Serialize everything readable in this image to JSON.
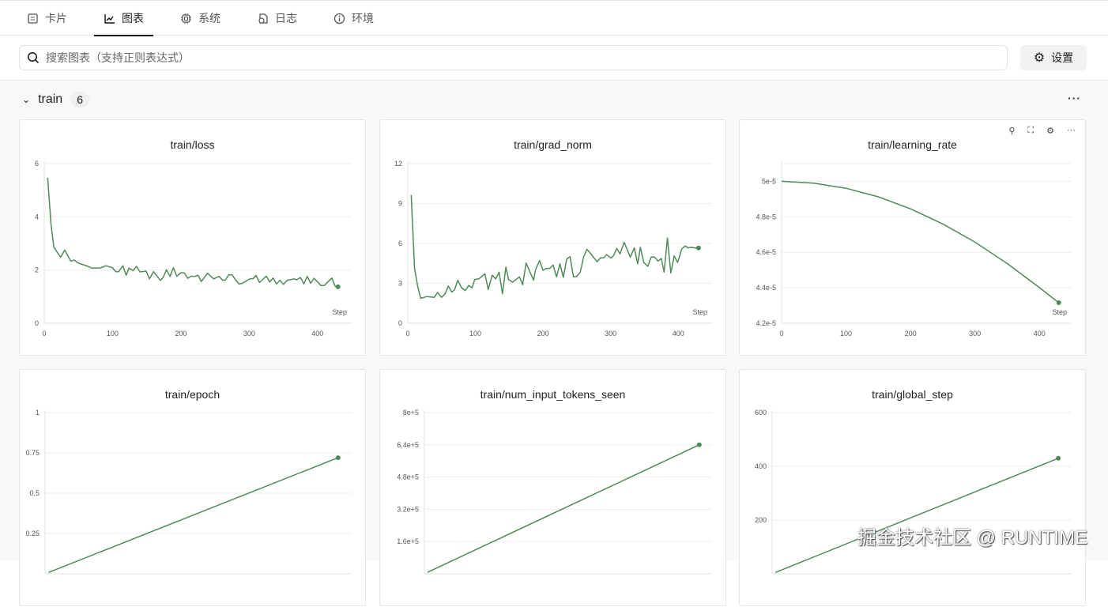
{
  "tabs": [
    {
      "label": "卡片",
      "icon": "card-icon"
    },
    {
      "label": "图表",
      "icon": "chart-icon",
      "active": true
    },
    {
      "label": "系统",
      "icon": "chip-icon"
    },
    {
      "label": "日志",
      "icon": "log-icon"
    },
    {
      "label": "环境",
      "icon": "info-icon"
    }
  ],
  "search": {
    "placeholder": "搜索图表（支持正则表达式）"
  },
  "settings_label": "设置",
  "section": {
    "name": "train",
    "count": "6"
  },
  "card_tools": [
    "pin-icon",
    "fullscreen-icon",
    "gear-icon",
    "more-icon"
  ],
  "colors": {
    "line": "#4f8a57",
    "accent": "#111111"
  },
  "watermark": "掘金技术社区 @ RUNTIME",
  "chart_data": [
    {
      "type": "line",
      "title": "train/loss",
      "xlabel": "Step",
      "xlim": [
        0,
        450
      ],
      "ylim": [
        0,
        6
      ],
      "xticks": [
        "0",
        "100",
        "200",
        "300",
        "400"
      ],
      "yticks": [
        "0",
        "2",
        "4",
        "6"
      ],
      "grid": true,
      "x": [
        5,
        10,
        14,
        24,
        30,
        39,
        44,
        49,
        64,
        70,
        82,
        90,
        99,
        105,
        109,
        115,
        120,
        124,
        130,
        135,
        140,
        149,
        154,
        160,
        170,
        174,
        179,
        184,
        189,
        194,
        200,
        205,
        210,
        215,
        221,
        225,
        230,
        239,
        248,
        256,
        261,
        265,
        270,
        275,
        280,
        285,
        290,
        300,
        306,
        310,
        315,
        325,
        330,
        335,
        340,
        345,
        350,
        356,
        366,
        369,
        375,
        380,
        385,
        390,
        395,
        405,
        410,
        421,
        426,
        430
      ],
      "y": [
        5.47,
        3.71,
        2.86,
        2.48,
        2.75,
        2.33,
        2.38,
        2.27,
        2.14,
        2.07,
        2.08,
        2.16,
        2.1,
        1.94,
        1.94,
        2.16,
        1.81,
        2.07,
        1.98,
        2.14,
        1.93,
        1.96,
        1.67,
        1.94,
        1.61,
        1.72,
        2.01,
        1.76,
        2.09,
        1.77,
        1.9,
        1.89,
        1.69,
        1.77,
        1.76,
        1.81,
        1.57,
        1.88,
        1.67,
        1.76,
        1.62,
        1.62,
        1.82,
        1.82,
        1.63,
        1.48,
        1.5,
        1.66,
        1.68,
        1.8,
        1.53,
        1.77,
        1.55,
        1.7,
        1.48,
        1.62,
        1.46,
        1.62,
        1.67,
        1.63,
        1.72,
        1.48,
        1.76,
        1.5,
        1.69,
        1.42,
        1.42,
        1.7,
        1.38,
        1.37
      ]
    },
    {
      "type": "line",
      "title": "train/grad_norm",
      "xlabel": "Step",
      "xlim": [
        0,
        450
      ],
      "ylim": [
        0,
        12
      ],
      "xticks": [
        "0",
        "100",
        "200",
        "300",
        "400"
      ],
      "yticks": [
        "0",
        "3",
        "6",
        "9",
        "12"
      ],
      "grid": true,
      "x": [
        5,
        10,
        15,
        19,
        28,
        34,
        39,
        44,
        50,
        55,
        60,
        65,
        69,
        74,
        79,
        85,
        90,
        95,
        99,
        105,
        114,
        119,
        125,
        130,
        135,
        140,
        145,
        149,
        155,
        165,
        170,
        175,
        186,
        189,
        195,
        200,
        205,
        210,
        215,
        220,
        225,
        230,
        235,
        240,
        245,
        250,
        255,
        260,
        265,
        270,
        280,
        285,
        290,
        294,
        300,
        304,
        309,
        314,
        320,
        329,
        335,
        340,
        344,
        349,
        355,
        360,
        365,
        370,
        375,
        379,
        384,
        389,
        394,
        399,
        405,
        410,
        415,
        419,
        425,
        430
      ],
      "y": [
        9.64,
        4.08,
        2.7,
        1.87,
        2.01,
        1.97,
        1.95,
        2.31,
        1.95,
        2.21,
        2.8,
        2.34,
        2.5,
        3.23,
        2.7,
        2.46,
        2.84,
        2.66,
        3.29,
        3.33,
        3.72,
        2.54,
        3.62,
        3.33,
        3.84,
        2.21,
        4.22,
        3.29,
        3.09,
        3.49,
        2.9,
        4.53,
        3.23,
        4.04,
        4.71,
        3.98,
        4.12,
        4.12,
        4.37,
        3.49,
        4.47,
        3.45,
        4.83,
        5.0,
        3.49,
        3.53,
        3.84,
        4.97,
        5.56,
        5.26,
        4.63,
        4.91,
        4.93,
        5.16,
        4.91,
        5.06,
        5.62,
        5.22,
        6.09,
        4.97,
        5.66,
        4.47,
        5.71,
        4.57,
        4.28,
        4.97,
        4.97,
        4.67,
        4.87,
        3.84,
        6.4,
        3.78,
        5.06,
        4.57,
        5.56,
        5.81,
        5.66,
        5.71,
        5.66,
        5.66
      ]
    },
    {
      "type": "line",
      "title": "train/learning_rate",
      "xlabel": "Step",
      "xlim": [
        0,
        450
      ],
      "ylim": [
        4.2e-05,
        5.1e-05
      ],
      "xticks": [
        "0",
        "100",
        "200",
        "300",
        "400"
      ],
      "yticks": [
        "4.2e-5",
        "4.4e-5",
        "4.6e-5",
        "4.8e-5",
        "5e-5"
      ],
      "grid": true,
      "x": [
        0,
        50,
        100,
        150,
        200,
        250,
        300,
        350,
        400,
        430
      ],
      "y": [
        5e-05,
        4.99e-05,
        4.961e-05,
        4.913e-05,
        4.845e-05,
        4.76e-05,
        4.657e-05,
        4.537e-05,
        4.401e-05,
        4.316e-05
      ]
    },
    {
      "type": "line",
      "title": "train/epoch",
      "xlim": [
        0,
        450
      ],
      "ylim": [
        0,
        1
      ],
      "yticks": [
        "0.25",
        "0.5",
        "0.75",
        "1"
      ],
      "grid": true,
      "x": [
        5,
        430
      ],
      "y": [
        0.0084,
        0.72
      ]
    },
    {
      "type": "line",
      "title": "train/num_input_tokens_seen",
      "xlim": [
        0,
        450
      ],
      "ylim": [
        0,
        800000.0
      ],
      "yticks": [
        "1.6e+5",
        "3.2e+5",
        "4.8e+5",
        "6.4e+5",
        "8e+5"
      ],
      "grid": true,
      "x": [
        5,
        430
      ],
      "y": [
        7440,
        640000
      ]
    },
    {
      "type": "line",
      "title": "train/global_step",
      "xlim": [
        0,
        450
      ],
      "ylim": [
        0,
        600
      ],
      "yticks": [
        "200",
        "400",
        "600"
      ],
      "grid": true,
      "x": [
        5,
        430
      ],
      "y": [
        5,
        430
      ]
    }
  ]
}
